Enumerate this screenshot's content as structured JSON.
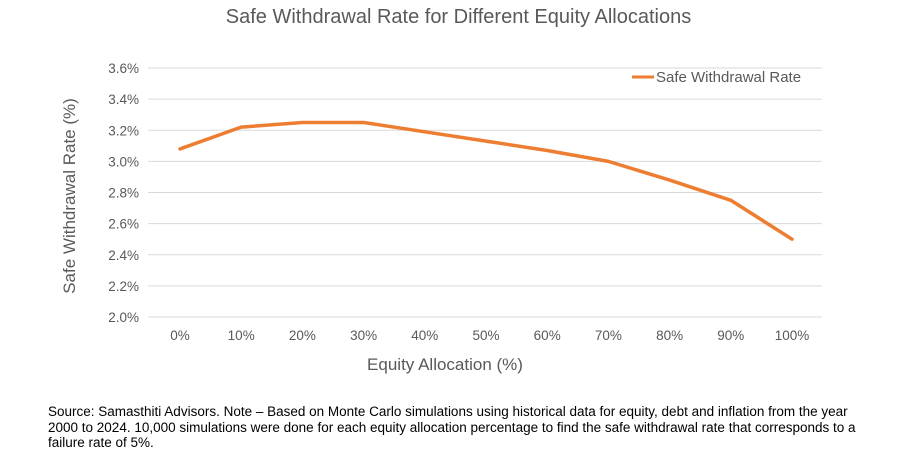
{
  "chart_data": {
    "type": "line",
    "title": "Safe Withdrawal Rate for Different Equity Allocations",
    "xlabel": "Equity Allocation (%)",
    "ylabel": "Safe Withdrawal Rate (%)",
    "categories": [
      "0%",
      "10%",
      "20%",
      "30%",
      "40%",
      "50%",
      "60%",
      "70%",
      "80%",
      "90%",
      "100%"
    ],
    "series": [
      {
        "name": "Safe Withdrawal Rate",
        "values": [
          3.08,
          3.22,
          3.25,
          3.25,
          3.19,
          3.13,
          3.07,
          3.0,
          2.88,
          2.75,
          2.5
        ],
        "color": "#ED7D31"
      }
    ],
    "ylim": [
      2.0,
      3.6
    ],
    "yticks": [
      "2.0%",
      "2.2%",
      "2.4%",
      "2.6%",
      "2.8%",
      "3.0%",
      "3.2%",
      "3.4%",
      "3.6%"
    ],
    "grid": true,
    "legend_position": "top-right"
  },
  "source_note": "Source: Samasthiti Advisors. Note – Based on Monte Carlo simulations using historical data for equity, debt and inflation from the year 2000 to 2024. 10,000 simulations were done for each equity allocation percentage to find the safe withdrawal rate that corresponds to a failure rate of 5%."
}
